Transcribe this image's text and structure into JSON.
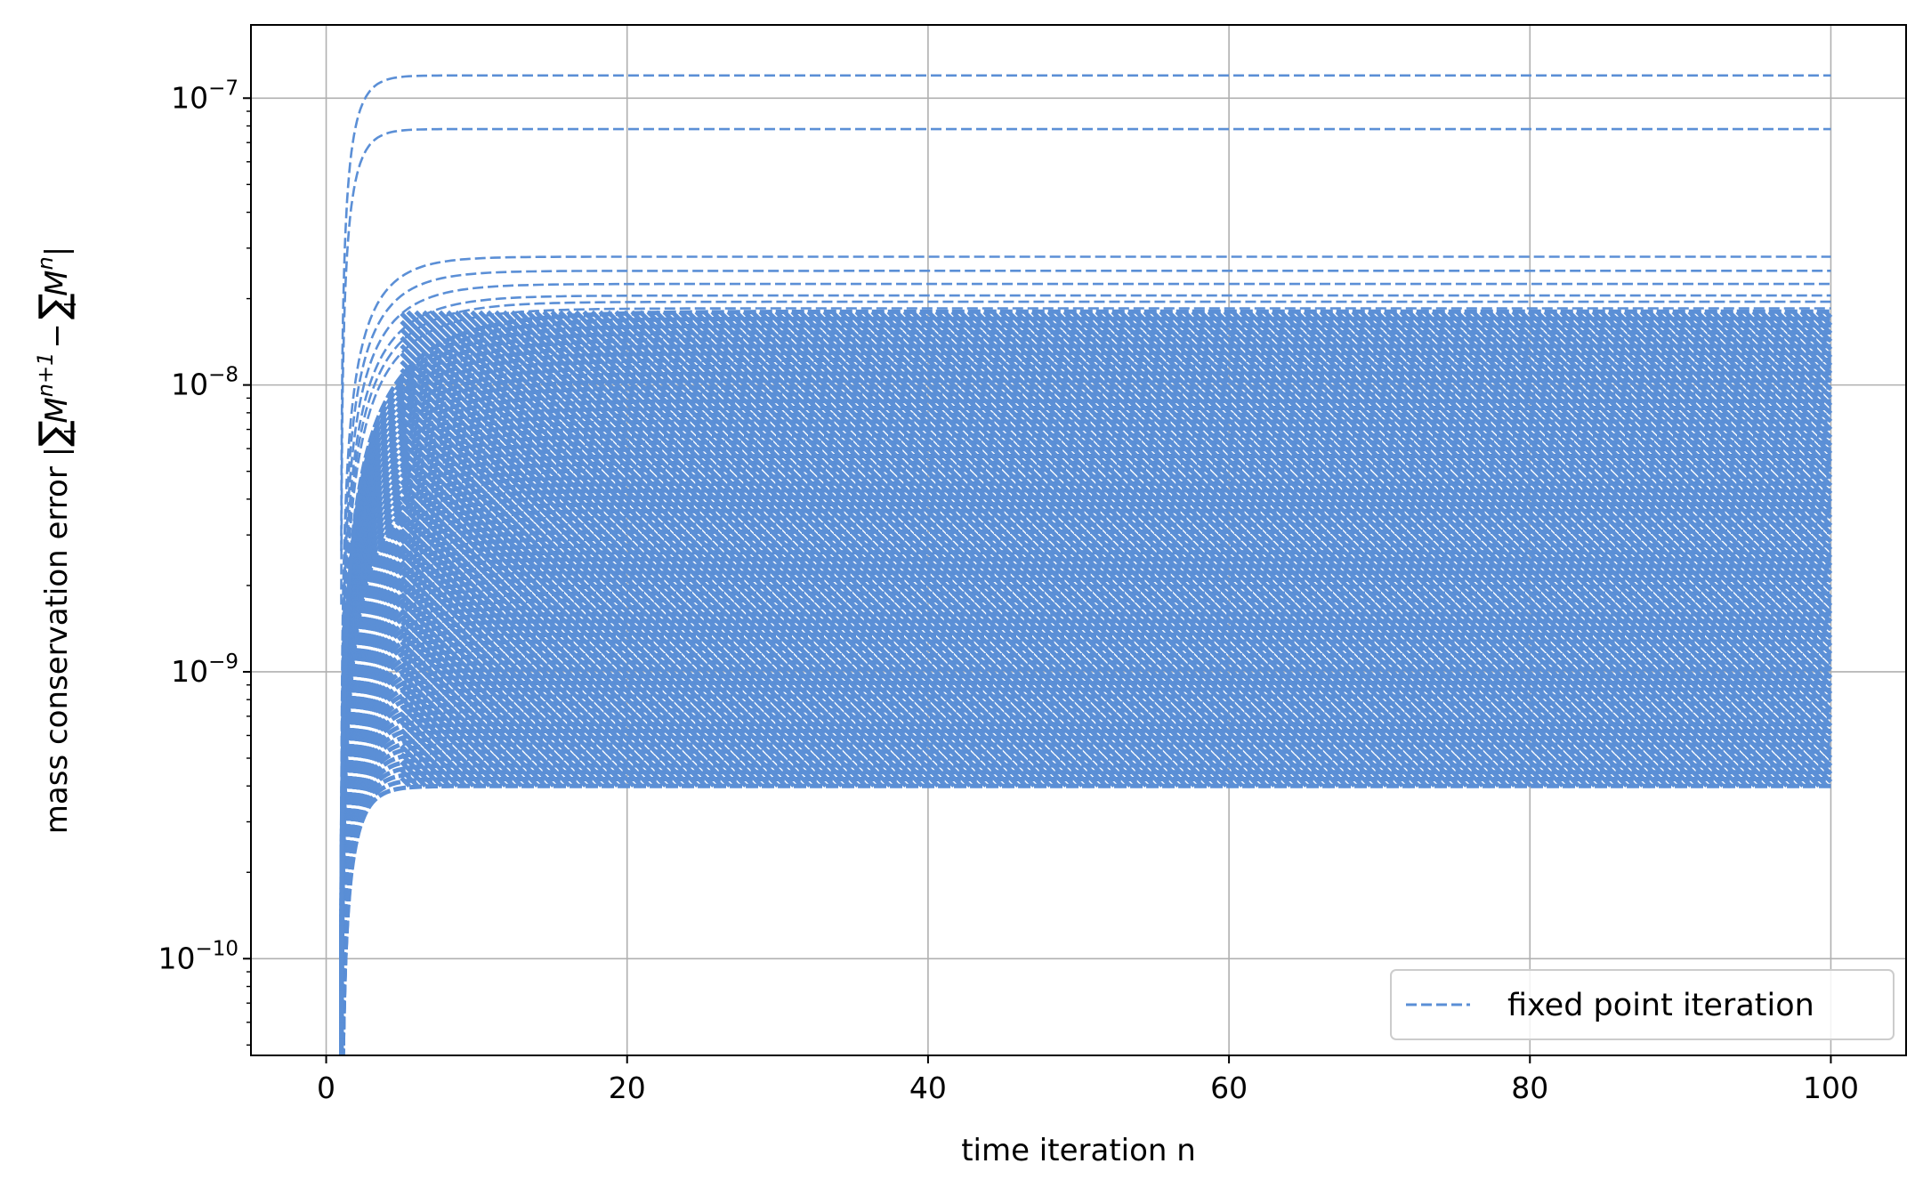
{
  "chart_data": {
    "type": "line",
    "xlabel": "time iteration n",
    "ylabel": "mass conservation error |∑ᵢMᵢⁿ⁺¹ − ∑ᵢMᵢⁿ|",
    "ylabel_parts": {
      "prefix": "mass conservation error |",
      "sum": "∑",
      "sub": "i",
      "m": "M",
      "sup1": "n+1",
      "minus": "−",
      "sup2": "n",
      "suffix": "|"
    },
    "xlim": [
      -5,
      105
    ],
    "ylim": [
      4.6e-11,
      1.8e-07
    ],
    "yscale": "log",
    "grid": true,
    "x_ticks": [
      0,
      20,
      40,
      60,
      80,
      100
    ],
    "x_tick_labels": [
      "0",
      "20",
      "40",
      "60",
      "80",
      "100"
    ],
    "y_ticks": [
      1e-10,
      1e-09,
      1e-08,
      1e-07
    ],
    "y_tick_labels": [
      {
        "base": "10",
        "exp": "−10"
      },
      {
        "base": "10",
        "exp": "−9"
      },
      {
        "base": "10",
        "exp": "−8"
      },
      {
        "base": "10",
        "exp": "−7"
      }
    ],
    "series_color": "#5b8fd6",
    "legend": {
      "label": "fixed point iteration",
      "placement": "lower right"
    },
    "series_description": "family of dashed curves from n=1 to n=100; each rises quickly then plateaus",
    "plateau_levels": [
      1.2e-07,
      7.8e-08,
      2.8e-08,
      2.5e-08,
      2.25e-08,
      2.05e-08,
      1.95e-08,
      1.85e-08
    ],
    "band": {
      "upper": 1.8e-08,
      "lower": 4e-10
    },
    "x_range": [
      1,
      100
    ]
  }
}
